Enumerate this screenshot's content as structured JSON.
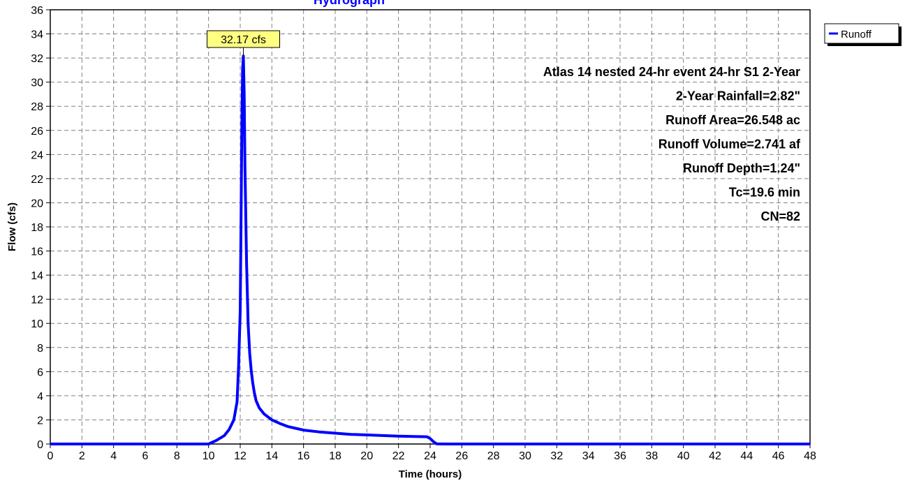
{
  "chart_data": {
    "type": "line",
    "title": "Hydrograph",
    "xlabel": "Time  (hours)",
    "ylabel": "Flow  (cfs)",
    "xlim": [
      0,
      48
    ],
    "ylim": [
      0,
      36
    ],
    "x_ticks": [
      0,
      2,
      4,
      6,
      8,
      10,
      12,
      14,
      16,
      18,
      20,
      22,
      24,
      26,
      28,
      30,
      32,
      34,
      36,
      38,
      40,
      42,
      44,
      46,
      48
    ],
    "y_ticks": [
      0,
      2,
      4,
      6,
      8,
      10,
      12,
      14,
      16,
      18,
      20,
      22,
      24,
      26,
      28,
      30,
      32,
      34,
      36
    ],
    "grid": true,
    "legend_position": "top-right",
    "series": [
      {
        "name": "Runoff",
        "color": "#0000ff",
        "x": [
          0,
          10.0,
          10.5,
          11.0,
          11.3,
          11.6,
          11.8,
          11.9,
          12.0,
          12.05,
          12.1,
          12.15,
          12.2,
          12.25,
          12.3,
          12.4,
          12.5,
          12.6,
          12.7,
          12.8,
          12.9,
          13.0,
          13.2,
          13.5,
          14.0,
          14.5,
          15.0,
          15.5,
          16.0,
          17.0,
          18.0,
          19.0,
          20.0,
          21.0,
          22.0,
          23.0,
          23.8,
          24.0,
          24.2,
          24.4,
          25.0,
          48.0
        ],
        "y": [
          0,
          0.0,
          0.3,
          0.7,
          1.2,
          2.0,
          3.5,
          6.5,
          11.0,
          18.0,
          26.0,
          31.0,
          32.17,
          29.0,
          23.0,
          15.0,
          10.0,
          7.5,
          6.0,
          5.0,
          4.2,
          3.6,
          3.0,
          2.5,
          2.0,
          1.7,
          1.45,
          1.3,
          1.15,
          1.0,
          0.9,
          0.8,
          0.75,
          0.7,
          0.65,
          0.62,
          0.6,
          0.45,
          0.2,
          0.02,
          0.0,
          0.0
        ]
      }
    ],
    "peak_label": "32.17 cfs",
    "peak_value": 32.17,
    "peak_time": 12.2,
    "annotations": [
      "Atlas 14 nested 24-hr event 24-hr S1 2-Year",
      "2-Year Rainfall=2.82\"",
      "Runoff Area=26.548 ac",
      "Runoff Volume=2.741 af",
      "Runoff Depth=1.24\"",
      "Tc=19.6 min",
      "CN=82"
    ]
  },
  "colors": {
    "title": "#0000ff",
    "series": "#0000ff",
    "grid": "#808080",
    "peak_label_bg": "#ffff80"
  }
}
